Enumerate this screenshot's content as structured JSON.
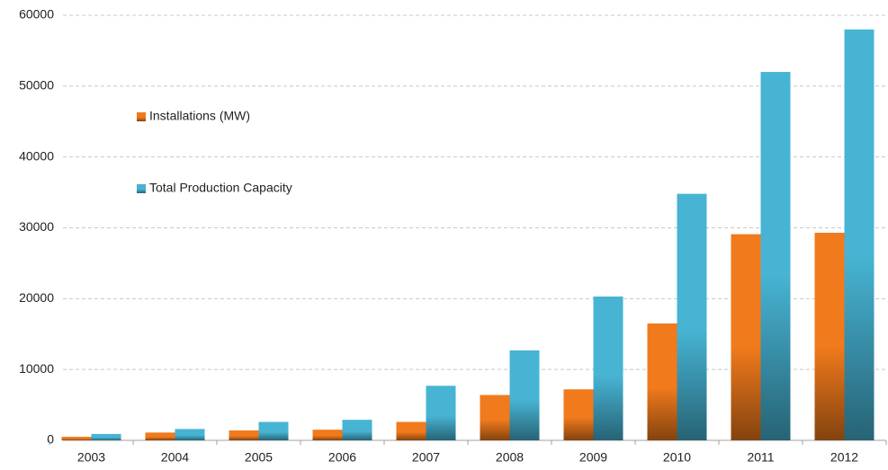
{
  "chart_data": {
    "type": "bar",
    "categories": [
      "2003",
      "2004",
      "2005",
      "2006",
      "2007",
      "2008",
      "2009",
      "2010",
      "2011",
      "2012"
    ],
    "series": [
      {
        "name": "Installations (MW)",
        "color": "#f07a1c",
        "values": [
          500,
          1100,
          1400,
          1500,
          2600,
          6400,
          7200,
          16500,
          29100,
          29300
        ]
      },
      {
        "name": "Total Production Capacity",
        "color": "#47b4d4",
        "values": [
          900,
          1600,
          2600,
          2900,
          7700,
          12700,
          20300,
          34800,
          52000,
          58000
        ]
      }
    ],
    "ylim": [
      0,
      60000
    ],
    "yticks": [
      0,
      10000,
      20000,
      30000,
      40000,
      50000,
      60000
    ],
    "grid": true
  }
}
